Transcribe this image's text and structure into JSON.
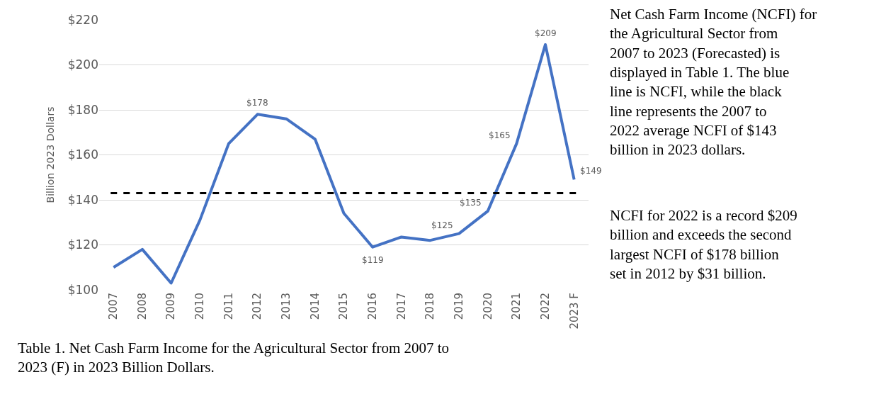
{
  "chart_data": {
    "type": "line",
    "ylabel": "Billion 2023 Dollars",
    "categories": [
      "2007",
      "2008",
      "2009",
      "2010",
      "2011",
      "2012",
      "2013",
      "2014",
      "2015",
      "2016",
      "2017",
      "2018",
      "2019",
      "2020",
      "2021",
      "2022",
      "2023 F"
    ],
    "series": [
      {
        "color": "#4472c4",
        "values": [
          110,
          118,
          103,
          131,
          165,
          178,
          176,
          167,
          134,
          119,
          123.5,
          122,
          125,
          135,
          165,
          209,
          149
        ],
        "value_labels": [
          null,
          null,
          null,
          null,
          null,
          "$178",
          null,
          null,
          null,
          "$119",
          null,
          null,
          "$125",
          "$135",
          "$165",
          "$209",
          "$149"
        ]
      }
    ],
    "ylim": [
      100,
      220
    ],
    "yticks": [
      {
        "value": 100,
        "label": "$100"
      },
      {
        "value": 120,
        "label": "$120"
      },
      {
        "value": 140,
        "label": "$140"
      },
      {
        "value": 160,
        "label": "$160"
      },
      {
        "value": 180,
        "label": "$180"
      },
      {
        "value": 200,
        "label": "$200"
      },
      {
        "value": 220,
        "label": "$220"
      }
    ],
    "grid": "y",
    "marker": "none",
    "line_style": "solid",
    "ref_lines": [
      {
        "axis": "y",
        "value": 143,
        "color": "#000000",
        "line_style": "dashed"
      }
    ],
    "annotations": [
      "Table 1. Net Cash Farm Income for the Agricultural Sector from 2007 to 2023 (F) in 2023 Billion Dollars.",
      "Net Cash Farm Income (NCFI) for the Agricultural Sector from 2007 to 2023 (Forecasted) is displayed in Table 1. The blue line is NCFI, while the black line represents the 2007 to 2022 average NCFI of $143 billion in 2023 dollars.",
      "NCFI for 2022 is a record $209 billion and exceeds the second largest NCFI of $178 billion set in 2012 by $31 billion."
    ]
  }
}
